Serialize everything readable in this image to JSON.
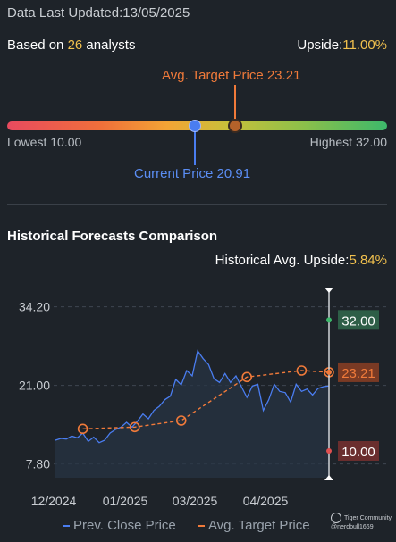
{
  "header": {
    "last_updated": "Data Last Updated:13/05/2025",
    "based_on_prefix": "Based on ",
    "analyst_count": "26",
    "based_on_suffix": " analysts",
    "upside_label": "Upside:",
    "upside_value": "11.00%"
  },
  "target_bar": {
    "avg_target_label": "Avg. Target Price 23.21",
    "lowest_label": "Lowest 10.00",
    "highest_label": "Highest 32.00",
    "current_label": "Current Price 20.91",
    "lowest": 10.0,
    "highest": 32.0,
    "current": 20.91,
    "avg_target": 23.21
  },
  "historical": {
    "title": "Historical Forecasts Comparison",
    "upside_label": "Historical Avg. Upside:",
    "upside_value": "5.84%"
  },
  "legend": {
    "prev_close": "Prev. Close Price",
    "avg_target": "Avg. Target Price"
  },
  "watermark": {
    "brand": "Tiger Community",
    "handle": "@nerdbull1669"
  },
  "chart_data": {
    "type": "line",
    "y_ticks": [
      "34.20",
      "21.00",
      "7.80"
    ],
    "y_tick_values": [
      34.2,
      21.0,
      7.8
    ],
    "ylim": [
      5.5,
      37.0
    ],
    "x_ticks": [
      "12/2024",
      "01/2025",
      "03/2025",
      "04/2025"
    ],
    "x_tick_positions": [
      0.0,
      0.27,
      0.53,
      0.79
    ],
    "markers": {
      "high": {
        "label": "32.00",
        "value": 32.0,
        "color": "#2e5e47"
      },
      "avg": {
        "label": "23.21",
        "value": 23.21,
        "color": "#7a3a24"
      },
      "low": {
        "label": "10.00",
        "value": 10.0,
        "color": "#6a2e2e"
      }
    },
    "series": [
      {
        "name": "Prev. Close Price",
        "color": "#4a7df0",
        "x": [
          0.0,
          0.02,
          0.04,
          0.06,
          0.08,
          0.1,
          0.12,
          0.14,
          0.16,
          0.18,
          0.2,
          0.22,
          0.24,
          0.26,
          0.28,
          0.3,
          0.32,
          0.34,
          0.36,
          0.38,
          0.4,
          0.42,
          0.44,
          0.46,
          0.48,
          0.5,
          0.52,
          0.54,
          0.56,
          0.58,
          0.6,
          0.62,
          0.64,
          0.66,
          0.68,
          0.7,
          0.72,
          0.74,
          0.76,
          0.78,
          0.8,
          0.82,
          0.84,
          0.86,
          0.88,
          0.9,
          0.92,
          0.94,
          0.96,
          0.98,
          1.0
        ],
        "values": [
          11.8,
          12.1,
          12.0,
          12.5,
          12.2,
          13.0,
          11.6,
          12.3,
          11.4,
          11.8,
          13.0,
          13.6,
          14.0,
          14.8,
          14.0,
          15.0,
          16.2,
          15.4,
          16.8,
          17.5,
          18.6,
          19.2,
          22.0,
          21.1,
          23.5,
          22.6,
          26.8,
          25.5,
          24.5,
          22.1,
          21.5,
          23.0,
          21.5,
          22.6,
          20.8,
          19.0,
          20.9,
          21.2,
          16.8,
          18.6,
          21.2,
          20.0,
          19.8,
          18.2,
          21.2,
          20.0,
          20.4,
          19.4,
          20.5,
          20.8,
          20.91
        ]
      },
      {
        "name": "Avg. Target Price",
        "color": "#f07a3a",
        "x": [
          0.1,
          0.29,
          0.46,
          0.7,
          0.9,
          1.0
        ],
        "values": [
          13.7,
          14.0,
          15.1,
          22.4,
          23.5,
          23.21
        ]
      }
    ]
  }
}
